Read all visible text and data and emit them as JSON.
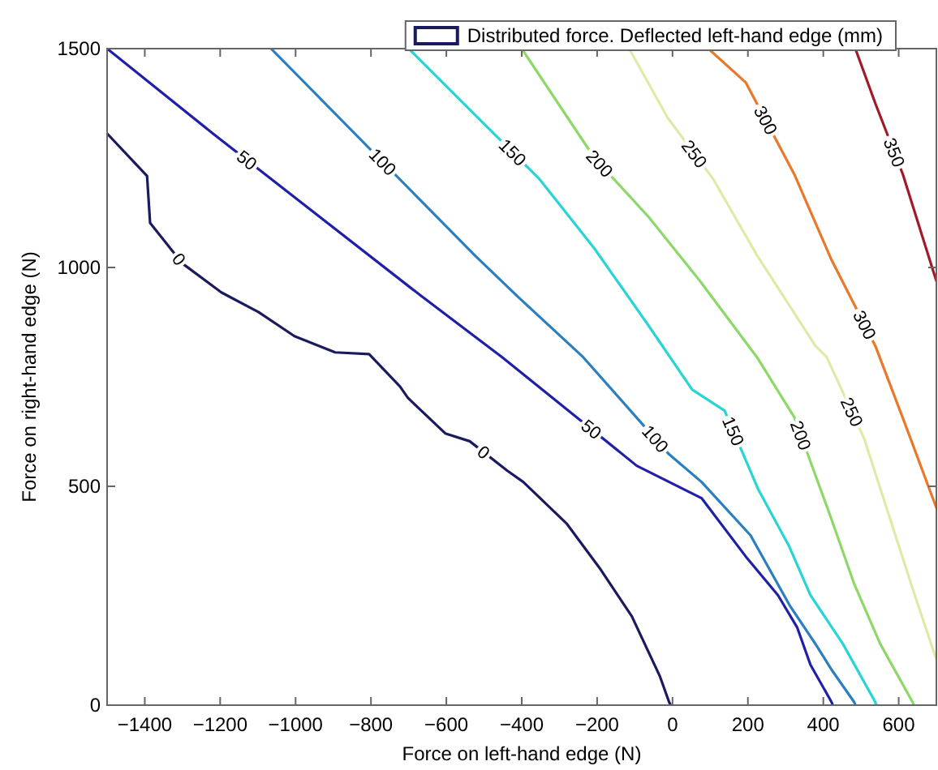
{
  "chart_data": {
    "type": "line",
    "xlabel": "Force on left-hand edge (N)",
    "ylabel": "Force on right-hand edge (N)",
    "legend_title": "Distributed force. Deflected left-hand edge (mm)",
    "legend": "top right",
    "grid": false,
    "marker": "none",
    "line_style": "solid",
    "xlim": [
      -1500,
      700
    ],
    "xticks": [
      -1400,
      -1200,
      -1000,
      -800,
      -600,
      -400,
      -200,
      0,
      200,
      400,
      600
    ],
    "ylim": [
      0,
      1500
    ],
    "yticks": [
      0,
      500,
      1000,
      1500
    ],
    "series": [
      {
        "name": "0",
        "color": "#1a1a5e",
        "x": [
          -1500,
          -1394,
          -1386,
          -1300,
          -1197,
          -1098,
          -1003,
          -895,
          -805,
          -723,
          -702,
          -603,
          -538,
          -439,
          -396,
          -280,
          -194,
          -108,
          -34,
          -9,
          -5
        ],
        "values": [
          1306,
          1209,
          1102,
          1009,
          943,
          898,
          843,
          806,
          802,
          728,
          702,
          621,
          603,
          536,
          510,
          414,
          314,
          203,
          67,
          7,
          0
        ]
      },
      {
        "name": "50",
        "color": "#1f1fa8",
        "x": [
          -1500,
          -1218,
          -667,
          -452,
          -95,
          77,
          194,
          280,
          331,
          366,
          422,
          425
        ],
        "values": [
          1500,
          1305,
          935,
          795,
          547,
          473,
          340,
          251,
          177,
          92,
          7,
          0
        ]
      },
      {
        "name": "100",
        "color": "#2a7fc0",
        "x": [
          -1065,
          -525,
          -409,
          -237,
          -9,
          77,
          207,
          310,
          379,
          422,
          482,
          485
        ],
        "values": [
          1500,
          1028,
          932,
          795,
          573,
          510,
          388,
          229,
          140,
          81,
          7,
          0
        ]
      },
      {
        "name": "150",
        "color": "#28d4d4",
        "x": [
          -700,
          -495,
          -353,
          -207,
          -65,
          52,
          138,
          228,
          310,
          366,
          452,
          538,
          540
        ],
        "values": [
          1500,
          1324,
          1202,
          1043,
          869,
          721,
          673,
          492,
          362,
          251,
          140,
          7,
          0
        ]
      },
      {
        "name": "200",
        "color": "#8ed86a",
        "x": [
          -400,
          -207,
          -65,
          73,
          224,
          323,
          417,
          482,
          551,
          637,
          640
        ],
        "values": [
          1500,
          1250,
          1117,
          969,
          795,
          658,
          436,
          277,
          140,
          7,
          0
        ]
      },
      {
        "name": "250",
        "color": "#e0eaa8",
        "x": [
          -115,
          -13,
          108,
          224,
          379,
          409,
          508,
          637,
          700
        ],
        "values": [
          1500,
          1342,
          1202,
          1028,
          821,
          795,
          610,
          266,
          104
        ]
      },
      {
        "name": "300",
        "color": "#e8782a",
        "x": [
          95,
          194,
          323,
          422,
          538,
          615,
          700
        ],
        "values": [
          1500,
          1423,
          1213,
          1017,
          821,
          647,
          451
        ]
      },
      {
        "name": "350",
        "color": "#a01a2a",
        "x": [
          485,
          538,
          611,
          700
        ],
        "values": [
          1500,
          1375,
          1213,
          969
        ]
      }
    ]
  }
}
